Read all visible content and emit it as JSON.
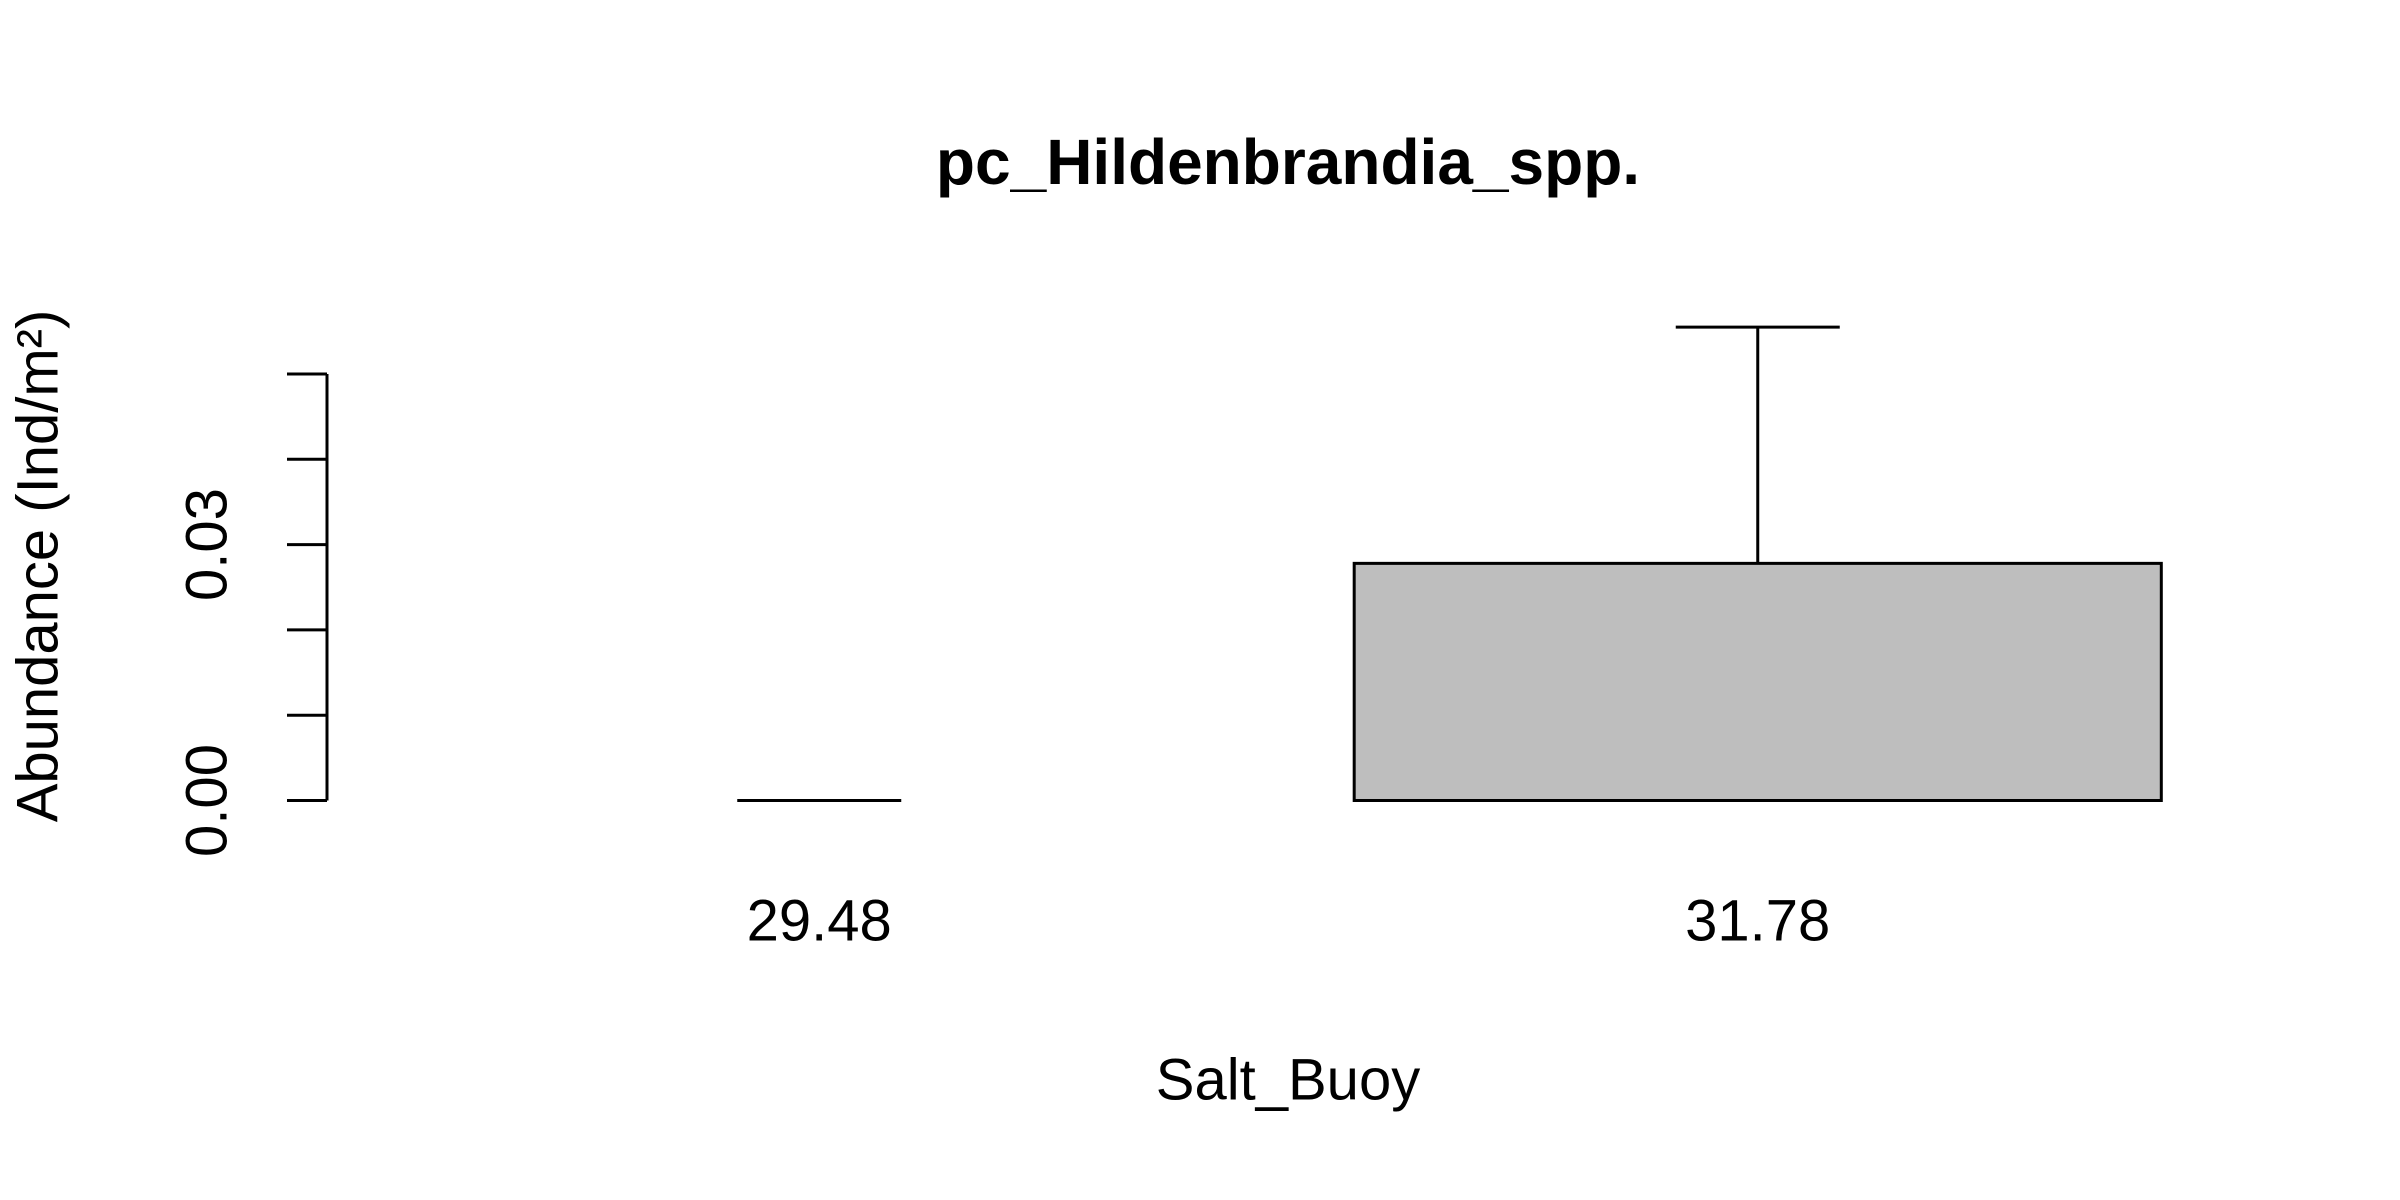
{
  "chart_data": {
    "type": "bar",
    "title": "pc_Hildenbrandia_spp.",
    "xlabel": "Salt_Buoy",
    "ylabel": "Abundance (Ind/m²)",
    "categories": [
      "29.48",
      "31.78"
    ],
    "values": [
      0,
      0.0278
    ],
    "errors": [
      0,
      0.0277
    ],
    "color": "#bebebe",
    "ylim": [
      0,
      0.06
    ],
    "yticks": [
      {
        "value": 0,
        "label": "0.00"
      },
      {
        "value": 0.03,
        "label": "0.03"
      }
    ],
    "yminor_ticks": [
      0.01,
      0.02,
      0.04,
      0.05
    ]
  }
}
